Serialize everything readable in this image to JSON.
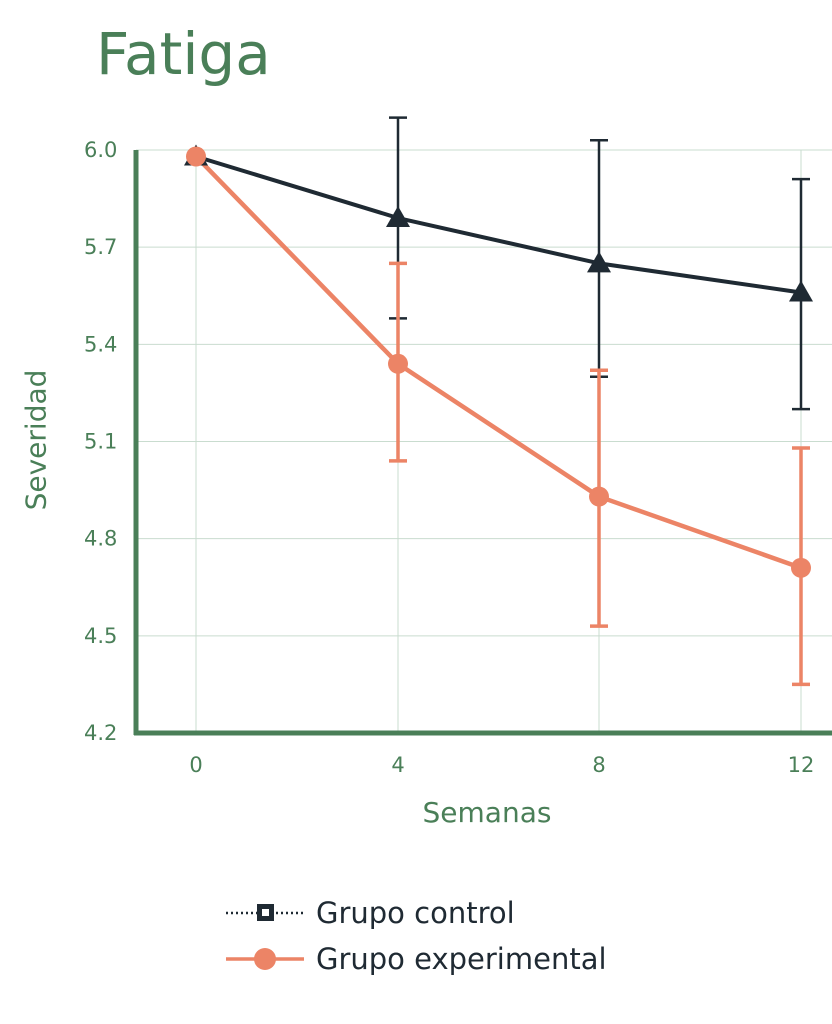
{
  "chart_data": {
    "type": "line",
    "title": "Fatiga",
    "xlabel": "Semanas",
    "ylabel": "Severidad",
    "x": [
      0,
      4,
      8,
      12
    ],
    "xticks": [
      "0",
      "4",
      "8",
      "12"
    ],
    "yticks": [
      "6.0",
      "5.7",
      "5.4",
      "5.1",
      "4.8",
      "4.5",
      "4.2"
    ],
    "ylim": [
      4.2,
      6.0
    ],
    "grid": true,
    "legend_position": "bottom",
    "series": [
      {
        "name": "Grupo control",
        "color": "#1f2a33",
        "marker": "triangle",
        "values": [
          5.98,
          5.79,
          5.65,
          5.56
        ],
        "error_low": [
          null,
          5.48,
          5.3,
          5.2
        ],
        "error_high": [
          null,
          6.1,
          6.03,
          5.91
        ]
      },
      {
        "name": "Grupo experimental",
        "color": "#ec8466",
        "marker": "circle",
        "values": [
          5.98,
          5.34,
          4.93,
          4.71
        ],
        "error_low": [
          null,
          5.04,
          4.53,
          4.35
        ],
        "error_high": [
          null,
          5.65,
          5.32,
          5.08
        ]
      }
    ]
  },
  "colors": {
    "axis": "#4a7f58",
    "grid": "#c9dccf"
  }
}
